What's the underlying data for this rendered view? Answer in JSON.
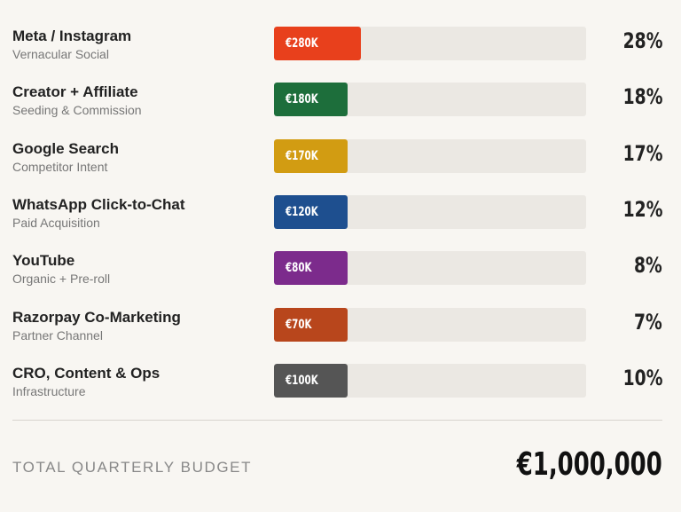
{
  "chart_data": {
    "type": "bar",
    "orientation": "horizontal",
    "max_value": 1000000,
    "rows": [
      {
        "title": "Meta / Instagram",
        "subtitle": "Vernacular Social",
        "value_label": "€280K",
        "value": 280000,
        "percent_label": "28%",
        "color": "#e8401c"
      },
      {
        "title": "Creator + Affiliate",
        "subtitle": "Seeding & Commission",
        "value_label": "€180K",
        "value": 180000,
        "percent_label": "18%",
        "color": "#1d6e3b"
      },
      {
        "title": "Google Search",
        "subtitle": "Competitor Intent",
        "value_label": "€170K",
        "value": 170000,
        "percent_label": "17%",
        "color": "#d29c12"
      },
      {
        "title": "WhatsApp Click-to-Chat",
        "subtitle": "Paid Acquisition",
        "value_label": "€120K",
        "value": 120000,
        "percent_label": "12%",
        "color": "#1e4f8f"
      },
      {
        "title": "YouTube",
        "subtitle": "Organic + Pre-roll",
        "value_label": "€80K",
        "value": 80000,
        "percent_label": "8%",
        "color": "#7c2b8c"
      },
      {
        "title": "Razorpay Co-Marketing",
        "subtitle": "Partner Channel",
        "value_label": "€70K",
        "value": 70000,
        "percent_label": "7%",
        "color": "#b8461c"
      },
      {
        "title": "CRO, Content & Ops",
        "subtitle": "Infrastructure",
        "value_label": "€100K",
        "value": 100000,
        "percent_label": "10%",
        "color": "#555555"
      }
    ],
    "total": {
      "label": "TOTAL QUARTERLY BUDGET",
      "value_label": "€1,000,000"
    }
  }
}
